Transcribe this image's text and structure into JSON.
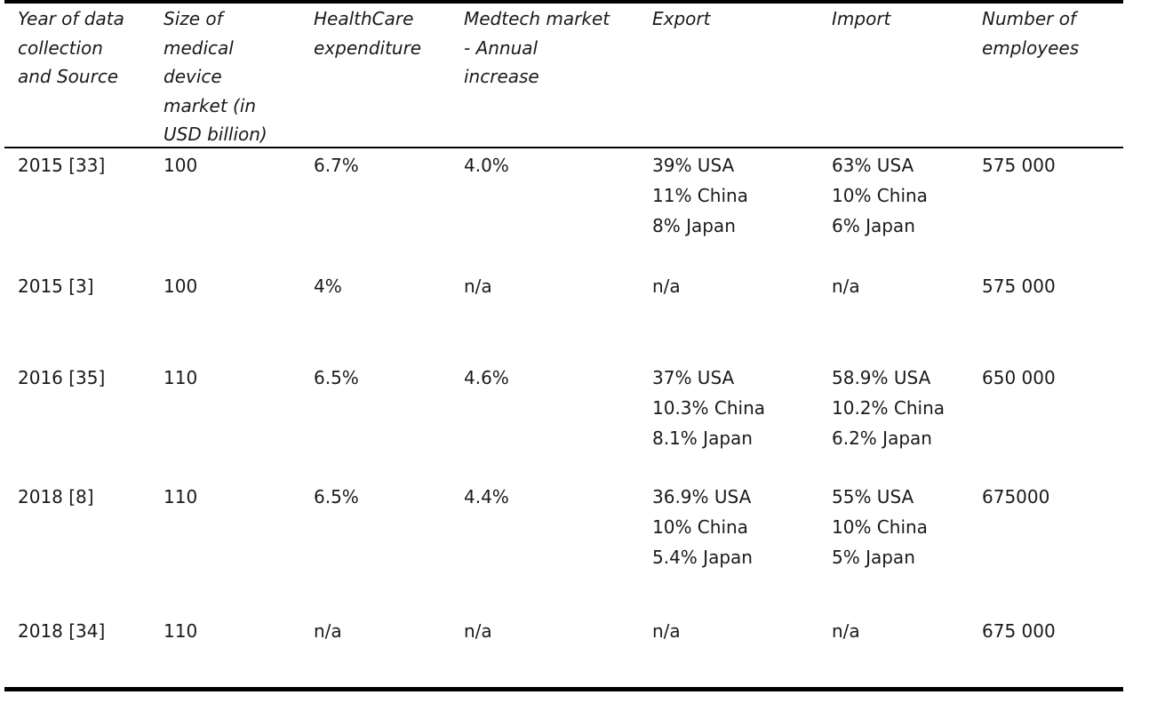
{
  "table": {
    "headers": [
      [
        "Year of data",
        "collection",
        "and Source"
      ],
      [
        "Size of",
        "medical",
        "device",
        "market (in",
        "USD billion)"
      ],
      [
        "HealthCare",
        "expenditure"
      ],
      [
        "Medtech market",
        "- Annual",
        "increase"
      ],
      [
        "Export"
      ],
      [
        "Import"
      ],
      [
        "Number of",
        "employees"
      ]
    ],
    "rows": [
      {
        "year_source": "2015 [33]",
        "market_size": "100",
        "healthcare_expenditure": "6.7%",
        "annual_increase": "4.0%",
        "export": [
          "39% USA",
          "11% China",
          "8% Japan"
        ],
        "import": [
          "63% USA",
          "10% China",
          "6% Japan"
        ],
        "employees": "575 000"
      },
      {
        "year_source": "2015 [3]",
        "market_size": "100",
        "healthcare_expenditure": "4%",
        "annual_increase": "n/a",
        "export": [
          "n/a"
        ],
        "import": [
          "n/a"
        ],
        "employees": "575 000"
      },
      {
        "year_source": "2016 [35]",
        "market_size": "110",
        "healthcare_expenditure": "6.5%",
        "annual_increase": "4.6%",
        "export": [
          "37% USA",
          "10.3% China",
          "8.1% Japan"
        ],
        "import": [
          "58.9% USA",
          "10.2% China",
          "6.2% Japan"
        ],
        "employees": "650 000"
      },
      {
        "year_source": "2018 [8]",
        "market_size": "110",
        "healthcare_expenditure": "6.5%",
        "annual_increase": "4.4%",
        "export": [
          "36.9% USA",
          "10% China",
          "5.4% Japan"
        ],
        "import": [
          "55% USA",
          "10% China",
          "5% Japan"
        ],
        "employees": "675000"
      },
      {
        "year_source": "2018 [34]",
        "market_size": "110",
        "healthcare_expenditure": "n/a",
        "annual_increase": "n/a",
        "export": [
          "n/a"
        ],
        "import": [
          "n/a"
        ],
        "employees": "675 000"
      }
    ]
  }
}
